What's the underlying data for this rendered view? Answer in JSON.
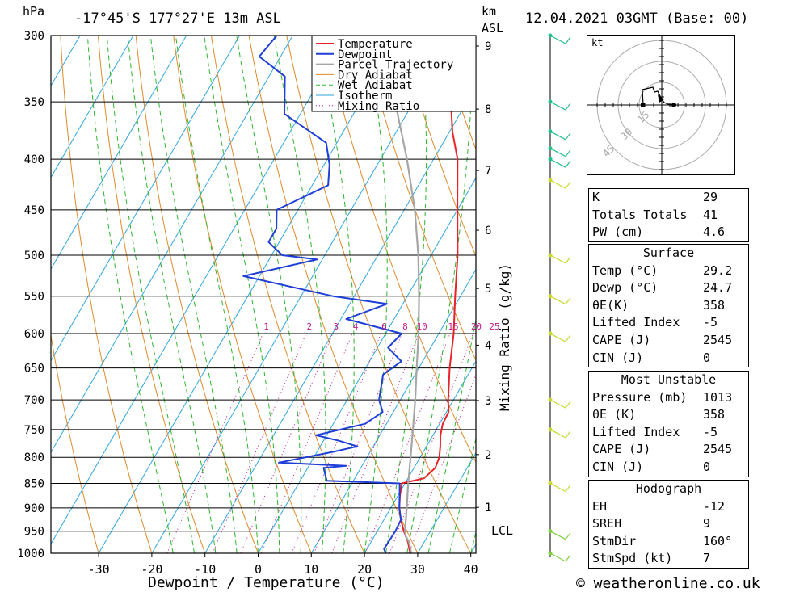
{
  "header": {
    "location": "-17°45'S  177°27'E  13m  ASL",
    "datetime": "12.04.2021  03GMT  (Base: 00)",
    "hpa_label": "hPa",
    "km_label": "km",
    "asl_label": "ASL",
    "copyright": "© weatheronline.co.uk"
  },
  "chart_data": {
    "type": "line",
    "xlabel": "Dewpoint / Temperature (°C)",
    "ylabel_right": "Mixing Ratio (g/kg)",
    "pressure_ticks": [
      300,
      350,
      400,
      450,
      500,
      550,
      600,
      650,
      700,
      750,
      800,
      850,
      900,
      950,
      1000
    ],
    "temp_ticks": [
      -30,
      -20,
      -10,
      0,
      10,
      20,
      30,
      40
    ],
    "km_ticks": [
      1,
      2,
      3,
      4,
      5,
      6,
      7,
      8,
      9
    ],
    "mixing_ratio_labels": [
      1,
      2,
      3,
      4,
      6,
      8,
      10,
      15,
      20,
      25
    ],
    "lcl_label": "LCL",
    "legend": [
      "Temperature",
      "Dewpoint",
      "Parcel Trajectory",
      "Dry Adiabat",
      "Wet Adiabat",
      "Isotherm",
      "Mixing Ratio"
    ],
    "colors": {
      "temperature": "#e8232a",
      "dewpoint": "#1f3fd6",
      "parcel": "#a6a6a6",
      "dry_adiabat": "#e08a2c",
      "wet_adiabat": "#2db52d",
      "isotherm": "#2ea6e0",
      "mixing_ratio": "#c01a8a"
    },
    "series": [
      {
        "name": "Temperature",
        "points": [
          [
            1000,
            28.6
          ],
          [
            975,
            27.0
          ],
          [
            950,
            25.0
          ],
          [
            925,
            23.2
          ],
          [
            900,
            21.6
          ],
          [
            875,
            20.4
          ],
          [
            850,
            19.4
          ],
          [
            840,
            23.0
          ],
          [
            820,
            24.0
          ],
          [
            800,
            23.6
          ],
          [
            780,
            22.6
          ],
          [
            760,
            21.4
          ],
          [
            740,
            20.6
          ],
          [
            720,
            20.4
          ],
          [
            700,
            19.0
          ],
          [
            650,
            15.8
          ],
          [
            600,
            12.8
          ],
          [
            550,
            9.0
          ],
          [
            500,
            5.0
          ],
          [
            450,
            0.0
          ],
          [
            400,
            -5.5
          ],
          [
            375,
            -9.5
          ],
          [
            350,
            -13.0
          ],
          [
            320,
            -17.0
          ],
          [
            300,
            -21.0
          ]
        ]
      },
      {
        "name": "Dewpoint",
        "points": [
          [
            1000,
            24.0
          ],
          [
            990,
            23.2
          ],
          [
            950,
            23.4
          ],
          [
            925,
            23.2
          ],
          [
            900,
            21.6
          ],
          [
            880,
            20.6
          ],
          [
            850,
            19.0
          ],
          [
            845,
            5.0
          ],
          [
            820,
            3.0
          ],
          [
            816,
            7.0
          ],
          [
            810,
            -6.0
          ],
          [
            790,
            3.0
          ],
          [
            780,
            7.0
          ],
          [
            770,
            3.0
          ],
          [
            760,
            -2.0
          ],
          [
            740,
            6.0
          ],
          [
            720,
            8.0
          ],
          [
            700,
            6.0
          ],
          [
            660,
            4.0
          ],
          [
            640,
            6.0
          ],
          [
            620,
            2.0
          ],
          [
            600,
            3.0
          ],
          [
            580,
            -9.0
          ],
          [
            560,
            -3.0
          ],
          [
            550,
            -14.0
          ],
          [
            525,
            -33.0
          ],
          [
            505,
            -21.0
          ],
          [
            500,
            -28.0
          ],
          [
            485,
            -32.0
          ],
          [
            470,
            -32.0
          ],
          [
            450,
            -34.0
          ],
          [
            425,
            -27.0
          ],
          [
            405,
            -29.0
          ],
          [
            385,
            -32.0
          ],
          [
            360,
            -43.0
          ],
          [
            330,
            -47.0
          ],
          [
            315,
            -54.0
          ],
          [
            300,
            -53.0
          ]
        ]
      },
      {
        "name": "Parcel Trajectory",
        "points": [
          [
            1000,
            28.8
          ],
          [
            975,
            27.2
          ],
          [
            960,
            25.8
          ],
          [
            950,
            25.2
          ],
          [
            900,
            23.0
          ],
          [
            850,
            20.6
          ],
          [
            800,
            18.2
          ],
          [
            750,
            15.6
          ],
          [
            700,
            12.8
          ],
          [
            650,
            9.6
          ],
          [
            600,
            6.2
          ],
          [
            550,
            2.2
          ],
          [
            500,
            -2.4
          ],
          [
            450,
            -8.0
          ],
          [
            400,
            -15.0
          ],
          [
            350,
            -23.5
          ],
          [
            300,
            -34.0
          ]
        ]
      }
    ]
  },
  "wind_profile": {
    "type": "wind-barbs",
    "levels": [
      300,
      350,
      375,
      390,
      400,
      420,
      500,
      550,
      600,
      700,
      750,
      850,
      950,
      1000
    ]
  },
  "hodograph": {
    "unit_label": "kt",
    "ring_labels": [
      "15",
      "30",
      "45"
    ]
  },
  "indices": {
    "rows": [
      {
        "label": "K",
        "value": "29"
      },
      {
        "label": "Totals Totals",
        "value": "41"
      },
      {
        "label": "PW (cm)",
        "value": "4.6"
      }
    ]
  },
  "surface": {
    "title": "Surface",
    "rows": [
      {
        "label": "Temp (°C)",
        "value": "29.2"
      },
      {
        "label": "Dewp (°C)",
        "value": "24.7"
      },
      {
        "label": "θE(K)",
        "value": "358"
      },
      {
        "label": "Lifted Index",
        "value": "-5"
      },
      {
        "label": "CAPE (J)",
        "value": "2545"
      },
      {
        "label": "CIN (J)",
        "value": "0"
      }
    ]
  },
  "most_unstable": {
    "title": "Most Unstable",
    "rows": [
      {
        "label": "Pressure (mb)",
        "value": "1013"
      },
      {
        "label": "θE (K)",
        "value": "358"
      },
      {
        "label": "Lifted Index",
        "value": "-5"
      },
      {
        "label": "CAPE (J)",
        "value": "2545"
      },
      {
        "label": "CIN (J)",
        "value": "0"
      }
    ]
  },
  "hodograph_table": {
    "title": "Hodograph",
    "rows": [
      {
        "label": "EH",
        "value": "-12"
      },
      {
        "label": "SREH",
        "value": "9"
      },
      {
        "label": "StmDir",
        "value": "160°"
      },
      {
        "label": "StmSpd (kt)",
        "value": "7"
      }
    ]
  }
}
